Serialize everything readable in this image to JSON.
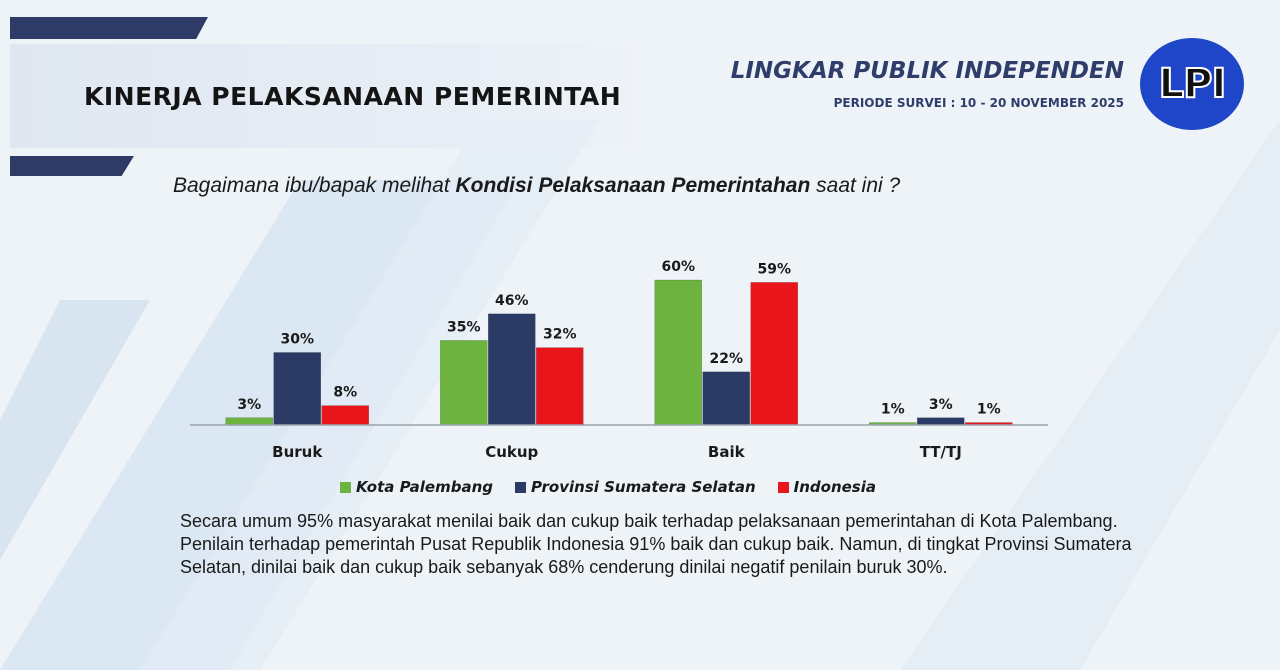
{
  "header": {
    "title": "KINERJA PELAKSANAAN PEMERINTAH",
    "org_name": "LINGKAR PUBLIK INDEPENDEN",
    "survey_period": "PERIODE SURVEI : 10 - 20 NOVEMBER 2025",
    "logo_text": "LPI"
  },
  "question": {
    "prefix": "Bagaimana ibu/bapak melihat ",
    "emphasis": "Kondisi Pelaksanaan Pemerintahan",
    "suffix": " saat ini ?"
  },
  "chart_data": {
    "type": "bar",
    "categories": [
      "Buruk",
      "Cukup",
      "Baik",
      "TT/TJ"
    ],
    "series": [
      {
        "name": "Kota Palembang",
        "color": "#6db33f",
        "values": [
          3,
          35,
          60,
          1
        ]
      },
      {
        "name": "Provinsi Sumatera Selatan",
        "color": "#2c3a66",
        "values": [
          30,
          46,
          22,
          3
        ]
      },
      {
        "name": "Indonesia",
        "color": "#e8161b",
        "values": [
          8,
          32,
          59,
          1
        ]
      }
    ],
    "value_suffix": "%",
    "ylim": [
      0,
      60
    ],
    "legend_position": "bottom",
    "grid": false
  },
  "summary": "Secara umum 95% masyarakat menilai baik dan cukup baik terhadap pelaksanaan pemerintahan di Kota Palembang. Penilain terhadap pemerintah Pusat  Republik Indonesia 91% baik dan cukup baik. Namun, di tingkat Provinsi Sumatera Selatan, dinilai baik dan cukup baik sebanyak 68% cenderung dinilai negatif penilain buruk 30%."
}
